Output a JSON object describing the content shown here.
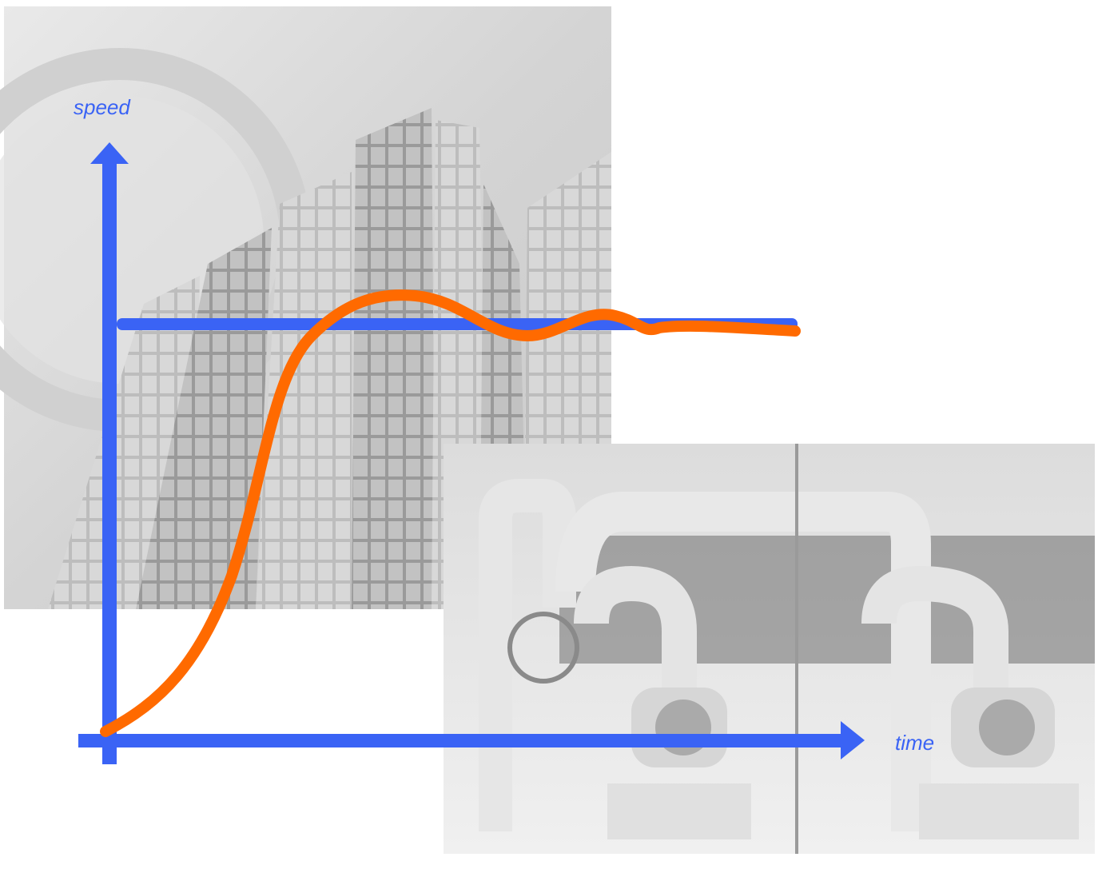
{
  "labels": {
    "y_axis": "speed",
    "x_axis": "time"
  }
}
